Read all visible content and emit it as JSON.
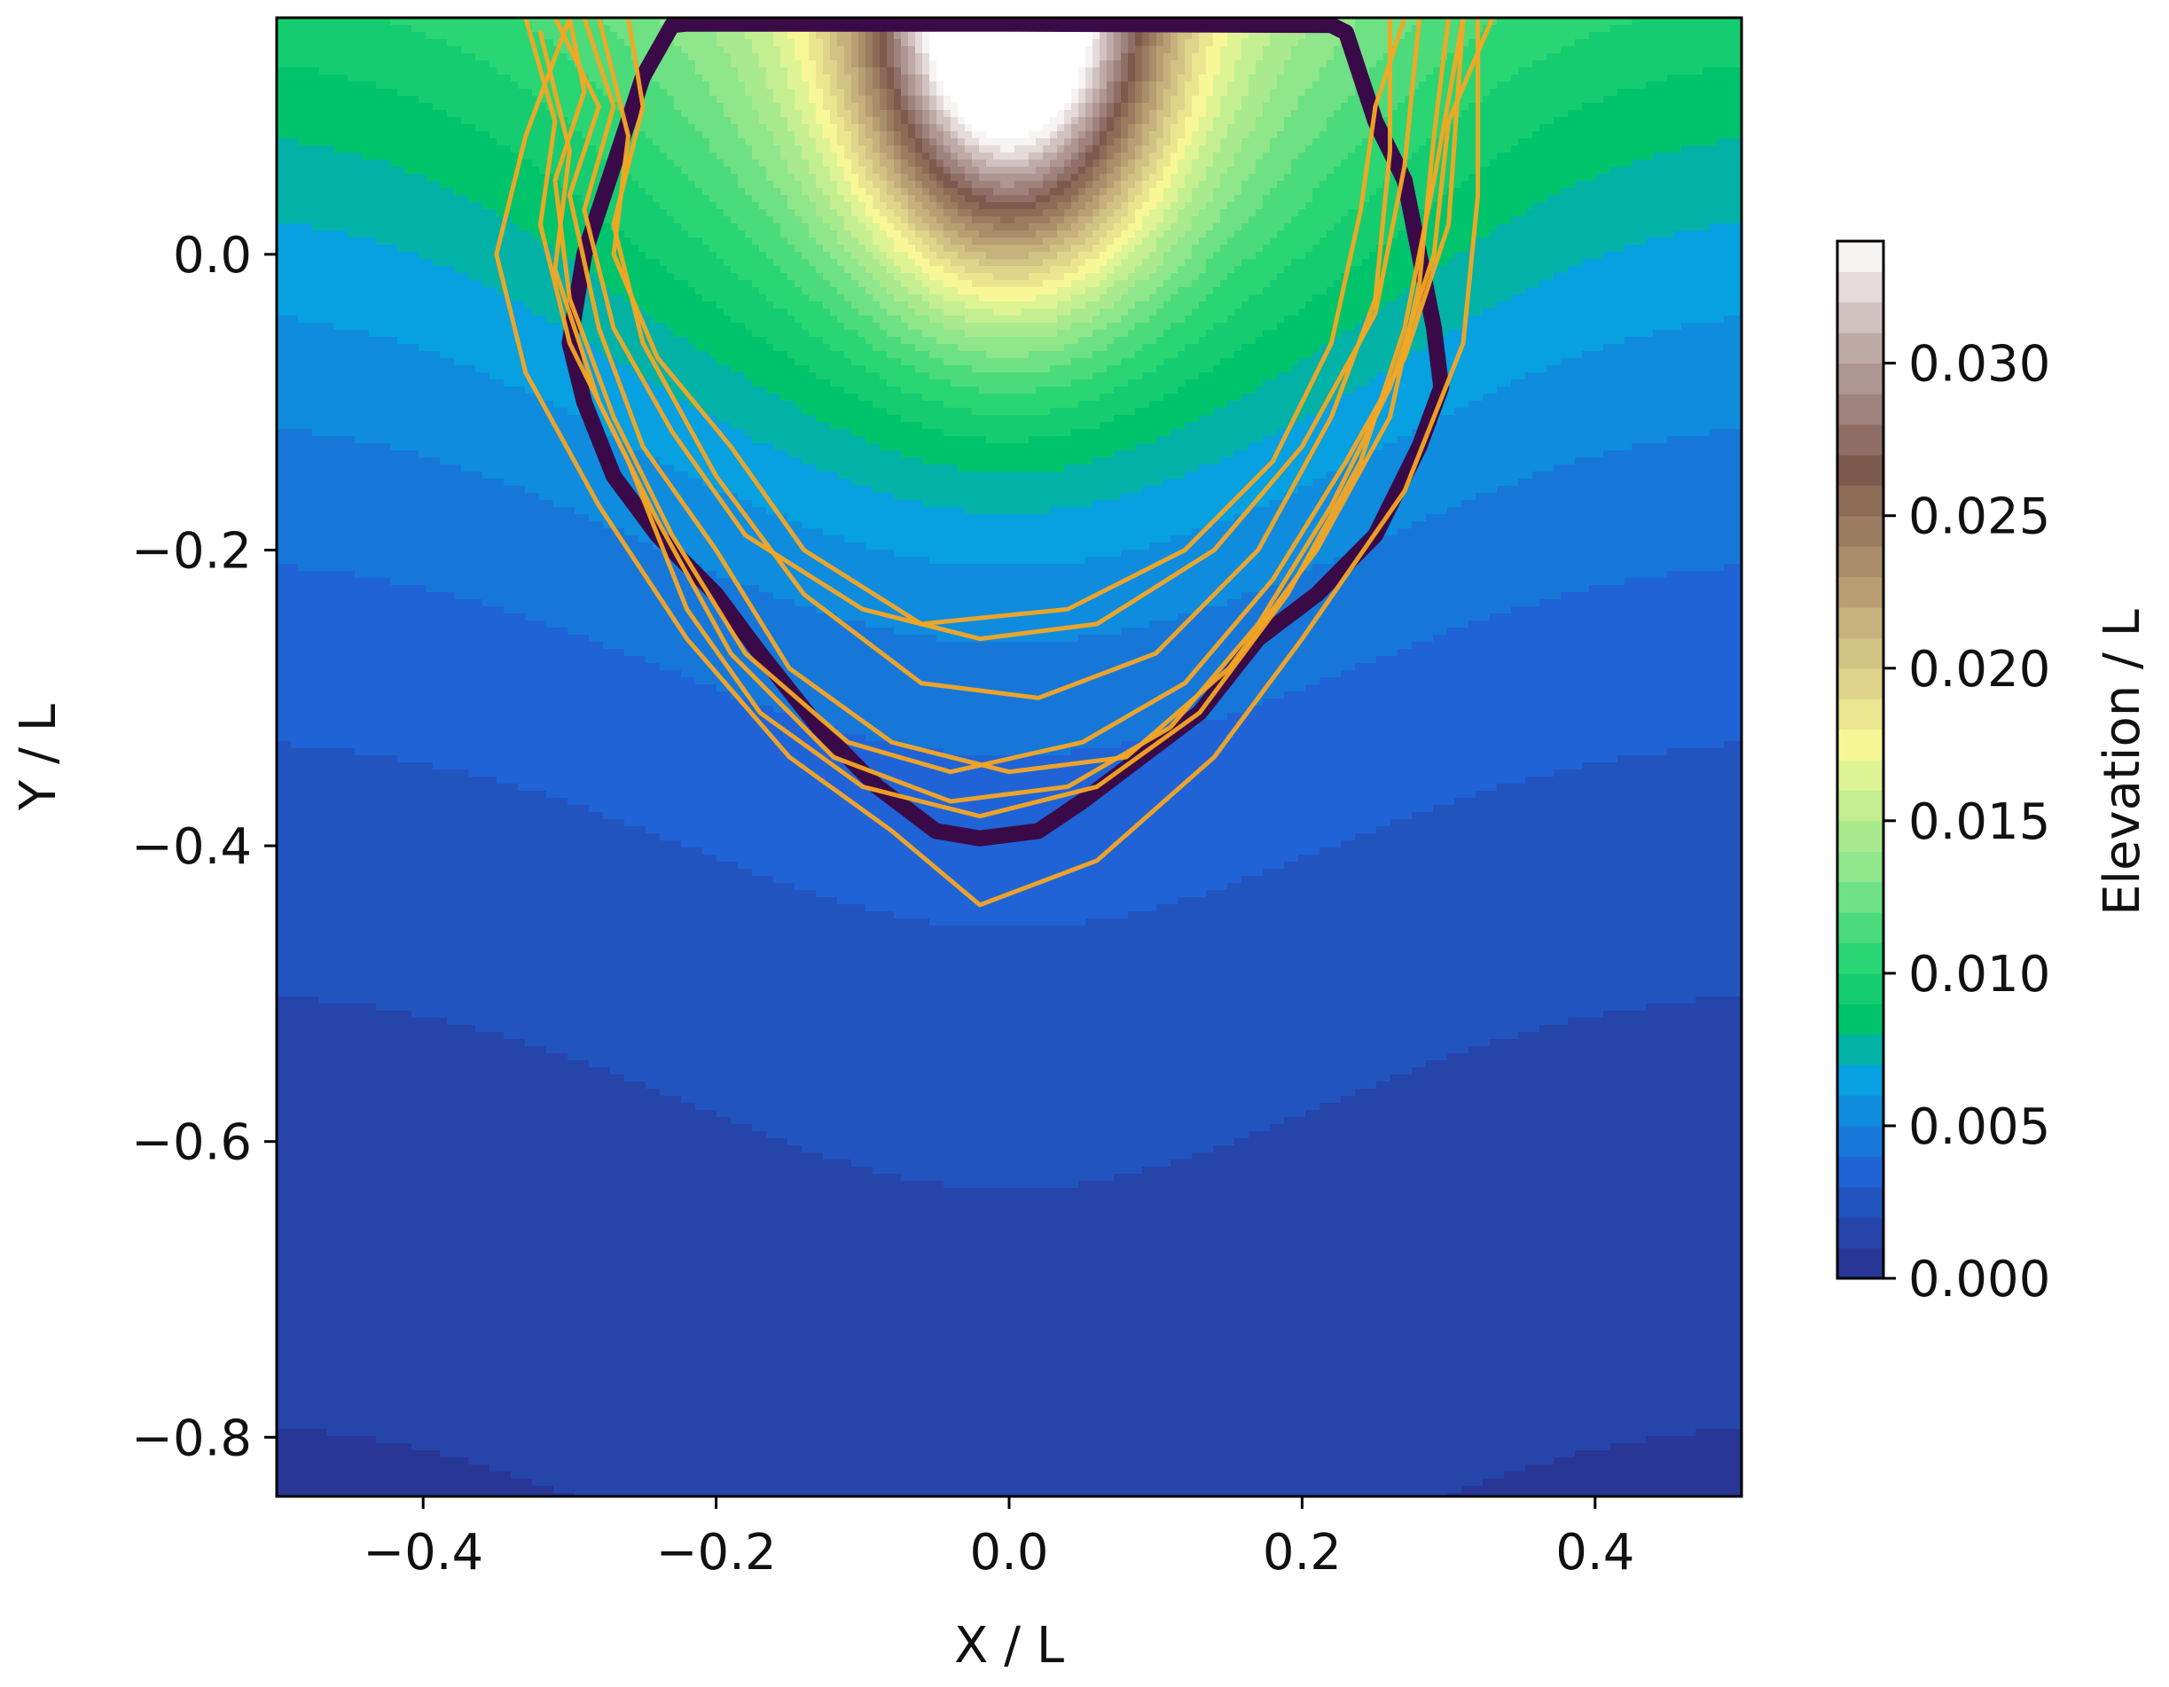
{
  "chart_data": {
    "type": "heatmap",
    "title": "",
    "xlabel": "X / L",
    "ylabel": "Y / L",
    "xlim": [
      -0.5,
      0.5
    ],
    "ylim": [
      -0.84,
      0.16
    ],
    "xticks": [
      -0.4,
      -0.2,
      0.0,
      0.2,
      0.4
    ],
    "xtick_labels": [
      "−0.4",
      "−0.2",
      "0.0",
      "0.2",
      "0.4"
    ],
    "yticks": [
      0.0,
      -0.2,
      -0.4,
      -0.6,
      -0.8
    ],
    "ytick_labels": [
      "0.0",
      "−0.2",
      "−0.4",
      "−0.6",
      "−0.8"
    ],
    "grid": false,
    "colorbar": {
      "label": "Elevation / L",
      "range": [
        0.0,
        0.034
      ],
      "ticks": [
        0.0,
        0.005,
        0.01,
        0.015,
        0.02,
        0.025,
        0.03
      ],
      "tick_labels": [
        "0.000",
        "0.005",
        "0.010",
        "0.015",
        "0.020",
        "0.025",
        "0.030"
      ],
      "colormap_stops": [
        {
          "v": 0.0,
          "c": "#2a2f8a"
        },
        {
          "v": 0.0035,
          "c": "#1f63d6"
        },
        {
          "v": 0.0065,
          "c": "#07a0e0"
        },
        {
          "v": 0.0085,
          "c": "#00c46c"
        },
        {
          "v": 0.0105,
          "c": "#2ad673"
        },
        {
          "v": 0.0135,
          "c": "#8fe68b"
        },
        {
          "v": 0.0175,
          "c": "#f8f797"
        },
        {
          "v": 0.0215,
          "c": "#c6b07c"
        },
        {
          "v": 0.0265,
          "c": "#7d5a4e"
        },
        {
          "v": 0.0305,
          "c": "#bfaaa8"
        },
        {
          "v": 0.034,
          "c": "#ffffff"
        }
      ]
    },
    "series": [
      {
        "kind": "boundary",
        "color": "#3a0a48",
        "points": [
          [
            -0.23,
            0.155
          ],
          [
            -0.22,
            0.156
          ],
          [
            0.0,
            0.156
          ],
          [
            0.22,
            0.155
          ],
          [
            0.23,
            0.15
          ],
          [
            0.25,
            0.09
          ],
          [
            0.27,
            0.05
          ],
          [
            0.28,
            0.0
          ],
          [
            0.29,
            -0.05
          ],
          [
            0.295,
            -0.09
          ],
          [
            0.28,
            -0.13
          ],
          [
            0.25,
            -0.19
          ],
          [
            0.21,
            -0.23
          ],
          [
            0.17,
            -0.26
          ],
          [
            0.13,
            -0.31
          ],
          [
            0.09,
            -0.34
          ],
          [
            0.05,
            -0.37
          ],
          [
            0.02,
            -0.39
          ],
          [
            -0.02,
            -0.395
          ],
          [
            -0.05,
            -0.39
          ],
          [
            -0.09,
            -0.36
          ],
          [
            -0.13,
            -0.32
          ],
          [
            -0.17,
            -0.27
          ],
          [
            -0.2,
            -0.23
          ],
          [
            -0.24,
            -0.19
          ],
          [
            -0.27,
            -0.15
          ],
          [
            -0.29,
            -0.1
          ],
          [
            -0.3,
            -0.06
          ],
          [
            -0.29,
            0.0
          ],
          [
            -0.27,
            0.06
          ],
          [
            -0.25,
            0.12
          ],
          [
            -0.23,
            0.155
          ]
        ]
      },
      {
        "kind": "ensemble",
        "color": "#f5a623",
        "points": [
          [
            -0.31,
            0.16
          ],
          [
            -0.28,
            0.1
          ],
          [
            -0.3,
            0.04
          ],
          [
            -0.28,
            -0.05
          ],
          [
            -0.25,
            -0.13
          ],
          [
            -0.2,
            -0.2
          ],
          [
            -0.15,
            -0.28
          ],
          [
            -0.08,
            -0.33
          ],
          [
            0.0,
            -0.35
          ],
          [
            0.08,
            -0.34
          ],
          [
            0.15,
            -0.28
          ],
          [
            0.21,
            -0.2
          ],
          [
            0.26,
            -0.11
          ],
          [
            0.28,
            -0.02
          ],
          [
            0.29,
            0.08
          ],
          [
            0.3,
            0.16
          ]
        ]
      },
      {
        "kind": "ensemble",
        "color": "#f5a623",
        "points": [
          [
            -0.3,
            0.16
          ],
          [
            -0.33,
            0.08
          ],
          [
            -0.35,
            0.0
          ],
          [
            -0.33,
            -0.08
          ],
          [
            -0.28,
            -0.17
          ],
          [
            -0.22,
            -0.26
          ],
          [
            -0.15,
            -0.34
          ],
          [
            -0.08,
            -0.39
          ],
          [
            -0.02,
            -0.44
          ],
          [
            0.06,
            -0.41
          ],
          [
            0.14,
            -0.34
          ],
          [
            0.2,
            -0.26
          ],
          [
            0.27,
            -0.16
          ],
          [
            0.31,
            -0.06
          ],
          [
            0.32,
            0.04
          ],
          [
            0.32,
            0.16
          ]
        ]
      },
      {
        "kind": "ensemble",
        "color": "#f5a623",
        "points": [
          [
            -0.28,
            0.16
          ],
          [
            -0.26,
            0.08
          ],
          [
            -0.27,
            0.0
          ],
          [
            -0.24,
            -0.07
          ],
          [
            -0.19,
            -0.13
          ],
          [
            -0.14,
            -0.2
          ],
          [
            -0.06,
            -0.25
          ],
          [
            0.04,
            -0.24
          ],
          [
            0.12,
            -0.2
          ],
          [
            0.18,
            -0.14
          ],
          [
            0.22,
            -0.06
          ],
          [
            0.24,
            0.03
          ],
          [
            0.25,
            0.1
          ],
          [
            0.27,
            0.16
          ]
        ]
      },
      {
        "kind": "ensemble",
        "color": "#f5a623",
        "points": [
          [
            -0.33,
            0.16
          ],
          [
            -0.31,
            0.09
          ],
          [
            -0.32,
            0.02
          ],
          [
            -0.3,
            -0.06
          ],
          [
            -0.26,
            -0.14
          ],
          [
            -0.22,
            -0.24
          ],
          [
            -0.17,
            -0.31
          ],
          [
            -0.1,
            -0.36
          ],
          [
            -0.02,
            -0.38
          ],
          [
            0.06,
            -0.36
          ],
          [
            0.13,
            -0.31
          ],
          [
            0.19,
            -0.23
          ],
          [
            0.24,
            -0.14
          ],
          [
            0.27,
            -0.05
          ],
          [
            0.29,
            0.05
          ],
          [
            0.31,
            0.16
          ]
        ]
      },
      {
        "kind": "ensemble",
        "color": "#f5a623",
        "points": [
          [
            -0.29,
            0.16
          ],
          [
            -0.27,
            0.1
          ],
          [
            -0.29,
            0.03
          ],
          [
            -0.27,
            -0.05
          ],
          [
            -0.23,
            -0.12
          ],
          [
            -0.18,
            -0.19
          ],
          [
            -0.1,
            -0.24
          ],
          [
            -0.02,
            -0.26
          ],
          [
            0.06,
            -0.25
          ],
          [
            0.14,
            -0.2
          ],
          [
            0.2,
            -0.13
          ],
          [
            0.25,
            -0.04
          ],
          [
            0.27,
            0.06
          ],
          [
            0.28,
            0.16
          ]
        ]
      },
      {
        "kind": "ensemble",
        "color": "#f5a623",
        "points": [
          [
            -0.32,
            0.15
          ],
          [
            -0.3,
            0.07
          ],
          [
            -0.31,
            -0.01
          ],
          [
            -0.28,
            -0.1
          ],
          [
            -0.24,
            -0.18
          ],
          [
            -0.19,
            -0.27
          ],
          [
            -0.12,
            -0.34
          ],
          [
            -0.04,
            -0.37
          ],
          [
            0.04,
            -0.36
          ],
          [
            0.11,
            -0.32
          ],
          [
            0.17,
            -0.25
          ],
          [
            0.22,
            -0.17
          ],
          [
            0.26,
            -0.09
          ],
          [
            0.29,
            0.0
          ],
          [
            0.3,
            0.09
          ],
          [
            0.33,
            0.16
          ]
        ]
      },
      {
        "kind": "ensemble",
        "color": "#f5a623",
        "points": [
          [
            -0.26,
            0.16
          ],
          [
            -0.25,
            0.1
          ],
          [
            -0.27,
            0.02
          ],
          [
            -0.25,
            -0.06
          ],
          [
            -0.2,
            -0.15
          ],
          [
            -0.14,
            -0.23
          ],
          [
            -0.06,
            -0.29
          ],
          [
            0.02,
            -0.3
          ],
          [
            0.1,
            -0.27
          ],
          [
            0.17,
            -0.2
          ],
          [
            0.22,
            -0.11
          ],
          [
            0.25,
            -0.03
          ],
          [
            0.26,
            0.07
          ],
          [
            0.26,
            0.16
          ]
        ]
      },
      {
        "kind": "ensemble",
        "color": "#f5a623",
        "points": [
          [
            -0.3,
            0.16
          ],
          [
            -0.29,
            0.11
          ],
          [
            -0.31,
            0.05
          ],
          [
            -0.3,
            -0.03
          ],
          [
            -0.27,
            -0.11
          ],
          [
            -0.23,
            -0.19
          ],
          [
            -0.18,
            -0.27
          ],
          [
            -0.11,
            -0.33
          ],
          [
            -0.04,
            -0.35
          ],
          [
            0.05,
            -0.33
          ],
          [
            0.12,
            -0.29
          ],
          [
            0.18,
            -0.22
          ],
          [
            0.23,
            -0.14
          ],
          [
            0.27,
            -0.07
          ],
          [
            0.3,
            0.02
          ],
          [
            0.31,
            0.16
          ]
        ]
      }
    ]
  }
}
